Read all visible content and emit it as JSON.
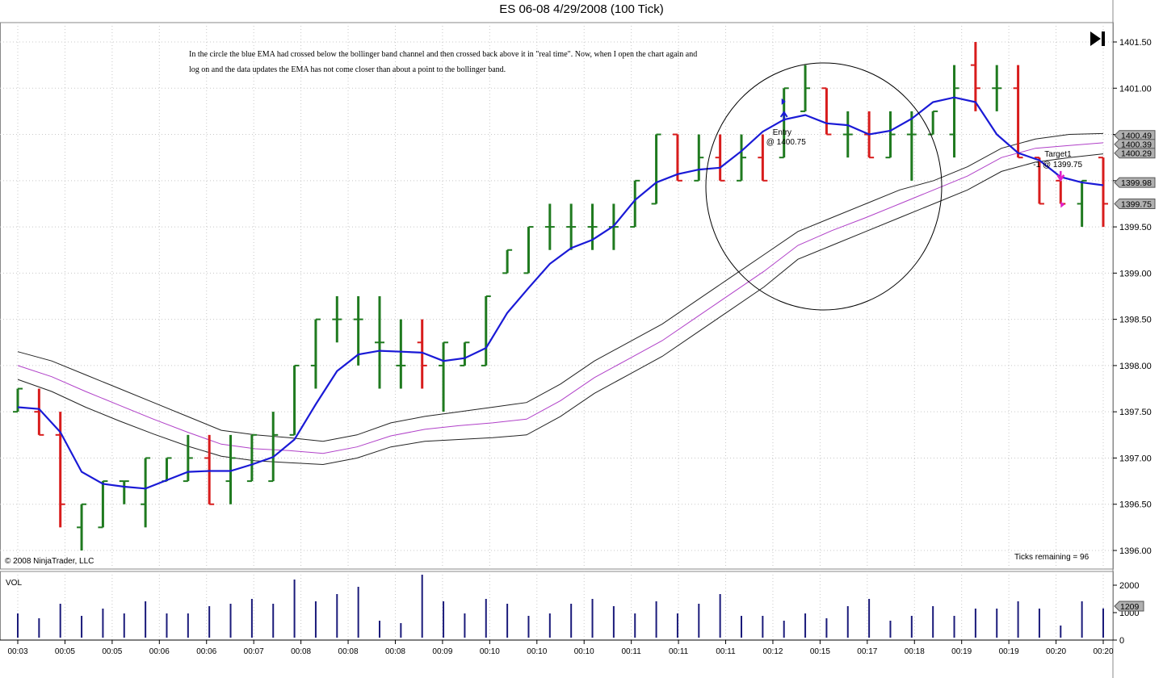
{
  "title": "ES 06-08  4/29/2008 (100 Tick)",
  "annotation_note": "In the circle the blue EMA had crossed below the bollinger band channel and then crossed back above it in \"real time\".  Now, when I open the chart again and log on and the data updates the EMA has not come closer than about a point to the bollinger band.",
  "copyright": "© 2008 NinjaTrader, LLC",
  "ticks_remaining": "Ticks remaining = 96",
  "volume_label": "VOL",
  "icons": {
    "play_to_end": "skip-to-end-icon"
  },
  "colors": {
    "up_bar": "#1f7a1f",
    "down_bar": "#d81c1c",
    "ema": "#1a1ad6",
    "bollinger_mid": "#b040c8",
    "bollinger_band": "#222222",
    "volume": "#1a1a7a",
    "marker": "#e020c8",
    "price_tag": "#b0b0b0"
  },
  "chart_data": [
    {
      "type": "ohlc",
      "y_axis_ticks": [
        "1396.00",
        "1396.50",
        "1397.00",
        "1397.50",
        "1398.00",
        "1398.50",
        "1399.00",
        "1399.50",
        "1400.00",
        "1400.50",
        "1401.00",
        "1401.50"
      ],
      "ylim": [
        1395.95,
        1401.6
      ],
      "x_tick_labels": [
        "00:03",
        "00:05",
        "00:05",
        "00:06",
        "00:06",
        "00:07",
        "00:08",
        "00:08",
        "00:08",
        "00:09",
        "00:10",
        "00:10",
        "00:10",
        "00:11",
        "00:11",
        "00:11",
        "00:12",
        "00:15",
        "00:17",
        "00:18",
        "00:19",
        "00:19",
        "00:20",
        "00:20"
      ],
      "bars": [
        {
          "o": 1397.5,
          "h": 1397.75,
          "l": 1397.5,
          "c": 1397.75
        },
        {
          "o": 1397.5,
          "h": 1397.75,
          "l": 1397.25,
          "c": 1397.25
        },
        {
          "o": 1397.25,
          "h": 1397.5,
          "l": 1396.25,
          "c": 1396.5
        },
        {
          "o": 1396.25,
          "h": 1396.5,
          "l": 1396.0,
          "c": 1396.5
        },
        {
          "o": 1396.25,
          "h": 1396.75,
          "l": 1396.25,
          "c": 1396.75
        },
        {
          "o": 1396.75,
          "h": 1396.75,
          "l": 1396.5,
          "c": 1396.75
        },
        {
          "o": 1396.5,
          "h": 1397.0,
          "l": 1396.25,
          "c": 1397.0
        },
        {
          "o": 1396.75,
          "h": 1397.0,
          "l": 1396.75,
          "c": 1397.0
        },
        {
          "o": 1396.75,
          "h": 1397.25,
          "l": 1396.75,
          "c": 1397.0
        },
        {
          "o": 1397.0,
          "h": 1397.25,
          "l": 1396.5,
          "c": 1396.5
        },
        {
          "o": 1396.75,
          "h": 1397.25,
          "l": 1396.5,
          "c": 1397.0
        },
        {
          "o": 1396.75,
          "h": 1397.25,
          "l": 1396.75,
          "c": 1397.25
        },
        {
          "o": 1396.75,
          "h": 1397.5,
          "l": 1396.75,
          "c": 1397.25
        },
        {
          "o": 1397.25,
          "h": 1398.0,
          "l": 1397.25,
          "c": 1398.0
        },
        {
          "o": 1398.0,
          "h": 1398.5,
          "l": 1397.75,
          "c": 1398.5
        },
        {
          "o": 1398.5,
          "h": 1398.75,
          "l": 1398.25,
          "c": 1398.5
        },
        {
          "o": 1398.5,
          "h": 1398.75,
          "l": 1398.0,
          "c": 1398.5
        },
        {
          "o": 1398.25,
          "h": 1398.75,
          "l": 1397.75,
          "c": 1398.25
        },
        {
          "o": 1398.0,
          "h": 1398.5,
          "l": 1397.75,
          "c": 1398.0
        },
        {
          "o": 1398.25,
          "h": 1398.5,
          "l": 1397.75,
          "c": 1398.0
        },
        {
          "o": 1398.0,
          "h": 1398.25,
          "l": 1397.5,
          "c": 1398.25
        },
        {
          "o": 1398.0,
          "h": 1398.25,
          "l": 1398.0,
          "c": 1398.25
        },
        {
          "o": 1398.0,
          "h": 1398.75,
          "l": 1398.0,
          "c": 1398.75
        },
        {
          "o": 1399.0,
          "h": 1399.25,
          "l": 1399.0,
          "c": 1399.25
        },
        {
          "o": 1399.0,
          "h": 1399.5,
          "l": 1399.0,
          "c": 1399.5
        },
        {
          "o": 1399.5,
          "h": 1399.75,
          "l": 1399.25,
          "c": 1399.5
        },
        {
          "o": 1399.5,
          "h": 1399.75,
          "l": 1399.25,
          "c": 1399.5
        },
        {
          "o": 1399.5,
          "h": 1399.75,
          "l": 1399.25,
          "c": 1399.5
        },
        {
          "o": 1399.5,
          "h": 1399.75,
          "l": 1399.25,
          "c": 1399.5
        },
        {
          "o": 1399.5,
          "h": 1400.0,
          "l": 1399.5,
          "c": 1400.0
        },
        {
          "o": 1399.75,
          "h": 1400.5,
          "l": 1399.75,
          "c": 1400.5
        },
        {
          "o": 1400.5,
          "h": 1400.5,
          "l": 1400.0,
          "c": 1400.0
        },
        {
          "o": 1400.0,
          "h": 1400.5,
          "l": 1400.0,
          "c": 1400.25
        },
        {
          "o": 1400.25,
          "h": 1400.5,
          "l": 1400.0,
          "c": 1400.0
        },
        {
          "o": 1400.0,
          "h": 1400.5,
          "l": 1400.0,
          "c": 1400.25
        },
        {
          "o": 1400.25,
          "h": 1400.5,
          "l": 1400.0,
          "c": 1400.0
        },
        {
          "o": 1400.25,
          "h": 1401.0,
          "l": 1400.25,
          "c": 1401.0
        },
        {
          "o": 1400.75,
          "h": 1401.25,
          "l": 1400.75,
          "c": 1401.0
        },
        {
          "o": 1401.0,
          "h": 1401.0,
          "l": 1400.5,
          "c": 1400.5
        },
        {
          "o": 1400.5,
          "h": 1400.75,
          "l": 1400.25,
          "c": 1400.5
        },
        {
          "o": 1400.5,
          "h": 1400.75,
          "l": 1400.25,
          "c": 1400.25
        },
        {
          "o": 1400.25,
          "h": 1400.75,
          "l": 1400.25,
          "c": 1400.5
        },
        {
          "o": 1400.5,
          "h": 1400.75,
          "l": 1400.0,
          "c": 1400.5
        },
        {
          "o": 1400.5,
          "h": 1400.75,
          "l": 1400.5,
          "c": 1400.75
        },
        {
          "o": 1400.5,
          "h": 1401.25,
          "l": 1400.25,
          "c": 1401.0
        },
        {
          "o": 1401.25,
          "h": 1401.5,
          "l": 1400.75,
          "c": 1401.0
        },
        {
          "o": 1401.0,
          "h": 1401.25,
          "l": 1400.75,
          "c": 1401.0
        },
        {
          "o": 1401.0,
          "h": 1401.25,
          "l": 1400.25,
          "c": 1400.25
        },
        {
          "o": 1400.25,
          "h": 1400.25,
          "l": 1399.75,
          "c": 1399.75
        },
        {
          "o": 1400.0,
          "h": 1400.0,
          "l": 1399.75,
          "c": 1399.75
        },
        {
          "o": 1399.75,
          "h": 1400.0,
          "l": 1399.5,
          "c": 1400.0
        },
        {
          "o": 1400.25,
          "h": 1400.25,
          "l": 1399.5,
          "c": 1399.75
        }
      ],
      "ema": [
        1397.55,
        1397.53,
        1397.28,
        1396.85,
        1396.72,
        1396.69,
        1396.67,
        1396.76,
        1396.85,
        1396.86,
        1396.86,
        1396.93,
        1397.01,
        1397.2,
        1397.58,
        1397.94,
        1398.12,
        1398.16,
        1398.15,
        1398.14,
        1398.05,
        1398.08,
        1398.19,
        1398.57,
        1398.84,
        1399.1,
        1399.27,
        1399.36,
        1399.51,
        1399.79,
        1399.98,
        1400.07,
        1400.12,
        1400.14,
        1400.32,
        1400.53,
        1400.66,
        1400.71,
        1400.62,
        1400.6,
        1400.5,
        1400.54,
        1400.67,
        1400.85,
        1400.9,
        1400.85,
        1400.5,
        1400.3,
        1400.22,
        1400.04,
        1399.98,
        1399.95
      ],
      "bollinger_upper": [
        1398.15,
        1398.05,
        1397.9,
        1397.75,
        1397.6,
        1397.45,
        1397.3,
        1397.25,
        1397.22,
        1397.18,
        1397.25,
        1397.38,
        1397.45,
        1397.5,
        1397.55,
        1397.6,
        1397.8,
        1398.05,
        1398.25,
        1398.45,
        1398.7,
        1398.95,
        1399.2,
        1399.45,
        1399.6,
        1399.75,
        1399.9,
        1400.0,
        1400.15,
        1400.35,
        1400.45,
        1400.5,
        1400.51
      ],
      "bollinger_mid": [
        1398.0,
        1397.88,
        1397.72,
        1397.57,
        1397.42,
        1397.28,
        1397.15,
        1397.1,
        1397.08,
        1397.05,
        1397.12,
        1397.24,
        1397.31,
        1397.35,
        1397.38,
        1397.42,
        1397.62,
        1397.87,
        1398.07,
        1398.27,
        1398.52,
        1398.77,
        1399.02,
        1399.3,
        1399.46,
        1399.6,
        1399.75,
        1399.9,
        1400.05,
        1400.25,
        1400.35,
        1400.38,
        1400.41
      ],
      "bollinger_lower": [
        1397.85,
        1397.72,
        1397.55,
        1397.4,
        1397.26,
        1397.13,
        1397.02,
        1396.97,
        1396.95,
        1396.93,
        1397.0,
        1397.12,
        1397.18,
        1397.2,
        1397.22,
        1397.25,
        1397.45,
        1397.7,
        1397.9,
        1398.1,
        1398.35,
        1398.6,
        1398.85,
        1399.15,
        1399.3,
        1399.45,
        1399.6,
        1399.75,
        1399.9,
        1400.1,
        1400.2,
        1400.25,
        1400.29
      ],
      "price_tags": [
        "1400.49",
        "1400.39",
        "1400.29",
        "1399.98",
        "1399.75"
      ],
      "annotations": [
        {
          "label": "Entry",
          "detail": "@ 1400.75",
          "price": 1400.75
        },
        {
          "label": "Target1",
          "detail": "-1 @ 1399.75",
          "price": 1399.75
        }
      ]
    },
    {
      "type": "bar",
      "name": "VOL",
      "y_axis_ticks": [
        "0",
        "1000",
        "2000"
      ],
      "ylim": [
        0,
        2300
      ],
      "values": [
        1000,
        800,
        1400,
        900,
        1200,
        1000,
        1500,
        1000,
        1000,
        1300,
        1400,
        1600,
        1400,
        2400,
        1500,
        1800,
        2100,
        700,
        600,
        2600,
        1500,
        1000,
        1600,
        1400,
        900,
        1000,
        1400,
        1600,
        1300,
        1000,
        1500,
        1000,
        1400,
        1800,
        900,
        900,
        700,
        1000,
        800,
        1300,
        1600,
        700,
        900,
        1300,
        900,
        1200,
        1200,
        1500,
        1200,
        500,
        1500,
        1209
      ],
      "last_value_tag": "1209"
    }
  ]
}
